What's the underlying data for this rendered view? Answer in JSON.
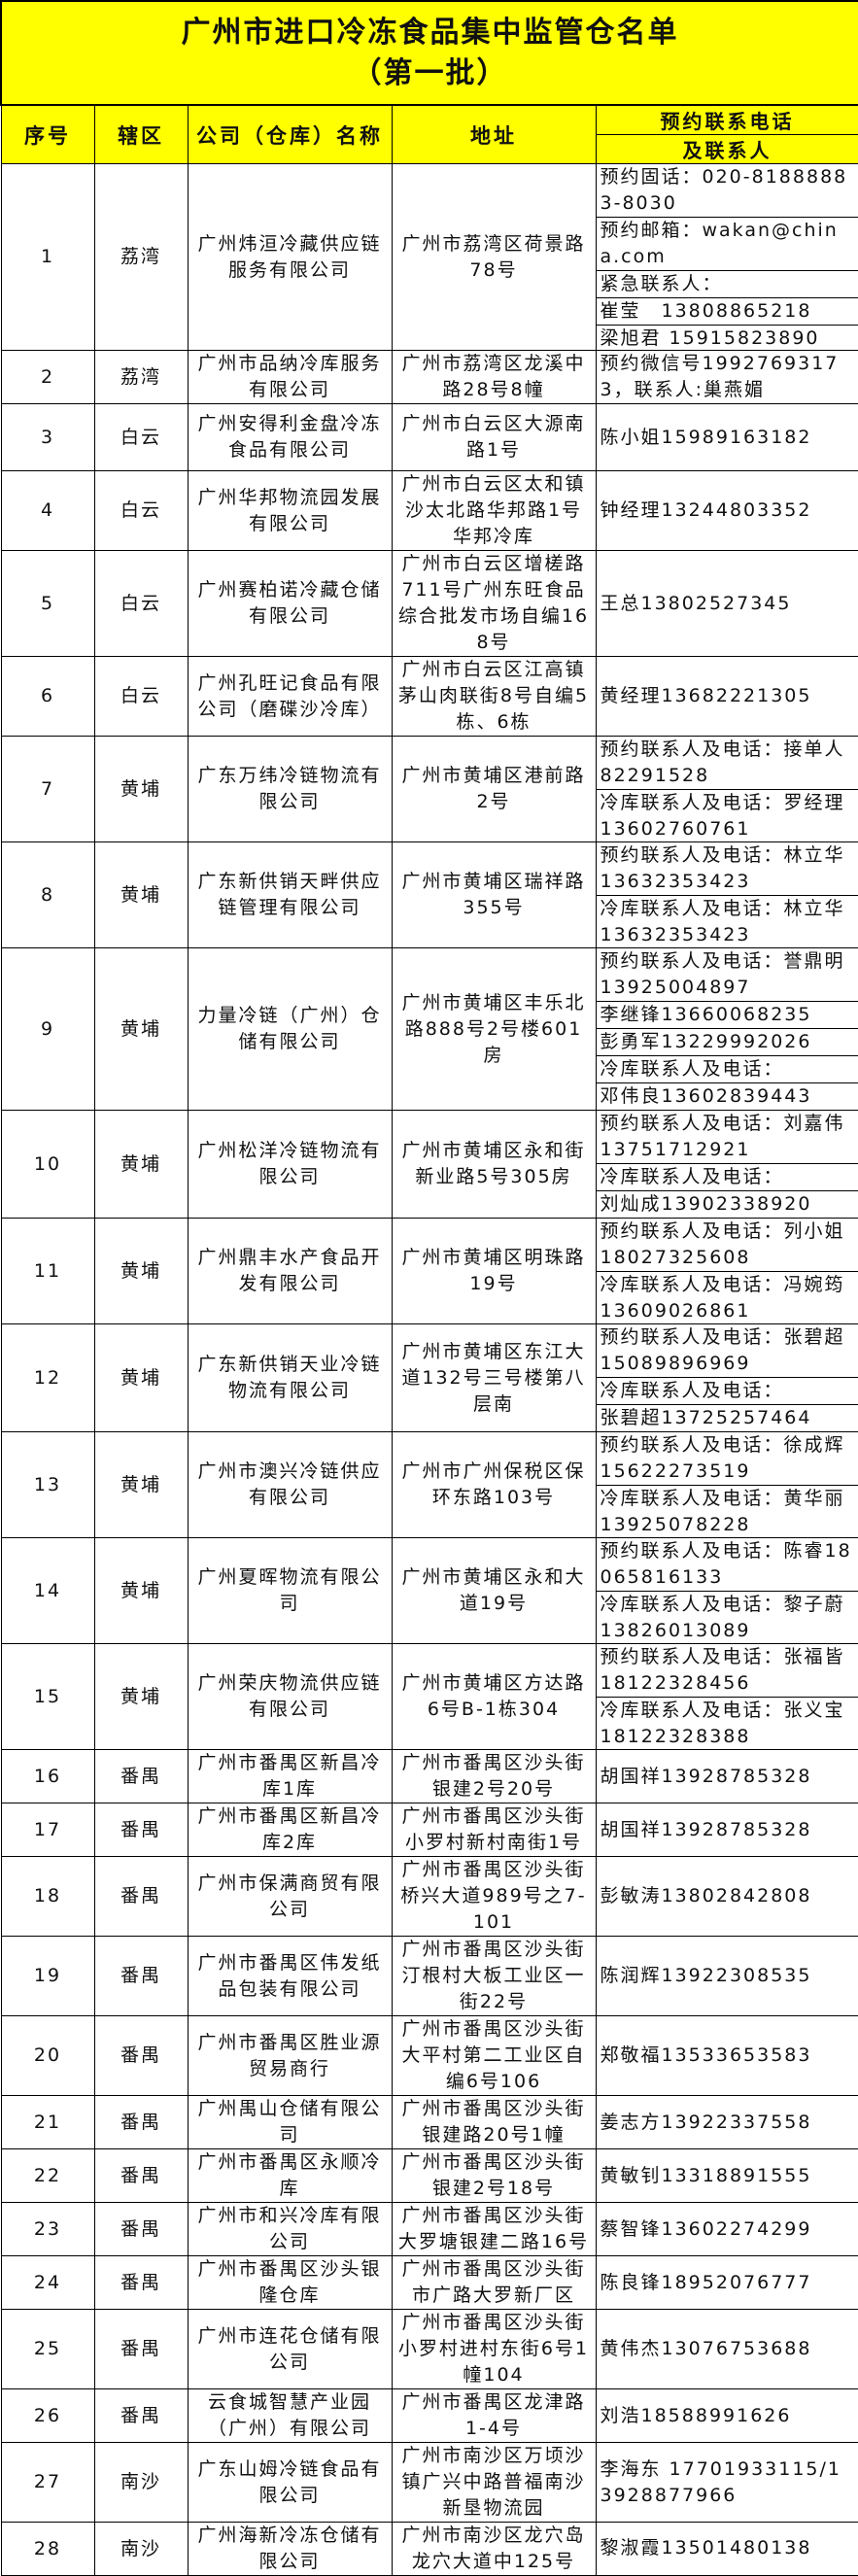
{
  "title": {
    "line1": "广州市进口冷冻食品集中监管仓名单",
    "line2": "（第一批）"
  },
  "headers": {
    "no": "序号",
    "district": "辖区",
    "company": "公司（仓库）名称",
    "address": "地址",
    "contact_line1": "预约联系电话",
    "contact_line2": "及联系人"
  },
  "theme": {
    "header_bg": "#ffff00"
  },
  "rows": [
    {
      "no": "1",
      "district": "荔湾",
      "company": "广州炜洹冷藏供应链服务有限公司",
      "address": "广州市荔湾区荷景路78号",
      "contacts": [
        "预约固话：020-81888883-8030",
        "预约邮箱：wakan@china.com",
        "紧急联系人：",
        "崔莹　13808865218",
        "梁旭君 15915823890"
      ]
    },
    {
      "no": "2",
      "district": "荔湾",
      "company": "广州市品纳冷库服务有限公司",
      "address": "广州市荔湾区龙溪中路28号8幢",
      "contacts": [
        "预约微信号19927693173，联系人:巢燕媚"
      ]
    },
    {
      "no": "3",
      "district": "白云",
      "company": "广州安得利金盘冷冻食品有限公司",
      "address": "广州市白云区大源南路1号",
      "contacts": [
        "陈小姐15989163182"
      ]
    },
    {
      "no": "4",
      "district": "白云",
      "company": "广州华邦物流园发展有限公司",
      "address": "广州市白云区太和镇沙太北路华邦路1号华邦冷库",
      "contacts": [
        "钟经理13244803352"
      ]
    },
    {
      "no": "5",
      "district": "白云",
      "company": "广州赛柏诺冷藏仓储有限公司",
      "address": "广州市白云区增槎路711号广州东旺食品综合批发市场自编168号",
      "contacts": [
        "王总13802527345"
      ]
    },
    {
      "no": "6",
      "district": "白云",
      "company": "广州孔旺记食品有限公司（磨碟沙冷库）",
      "address": "广州市白云区江高镇茅山肉联街8号自编5栋、6栋",
      "contacts": [
        "黄经理13682221305"
      ]
    },
    {
      "no": "7",
      "district": "黄埔",
      "company": "广东万纬冷链物流有限公司",
      "address": "广州市黄埔区港前路2号",
      "contacts": [
        "预约联系人及电话：接单人82291528",
        "冷库联系人及电话：罗经理13602760761"
      ]
    },
    {
      "no": "8",
      "district": "黄埔",
      "company": "广东新供销天畔供应链管理有限公司",
      "address": "广州市黄埔区瑞祥路355号",
      "contacts": [
        "预约联系人及电话：林立华13632353423",
        "冷库联系人及电话：林立华13632353423"
      ]
    },
    {
      "no": "9",
      "district": "黄埔",
      "company": "力量冷链（广州）仓储有限公司",
      "address": "广州市黄埔区丰乐北路888号2号楼601房",
      "contacts": [
        "预约联系人及电话：誉鼎明13925004897",
        "李继锋13660068235",
        "彭勇军13229992026",
        "冷库联系人及电话：",
        "邓伟良13602839443"
      ]
    },
    {
      "no": "10",
      "district": "黄埔",
      "company": "广州松洋冷链物流有限公司",
      "address": "广州市黄埔区永和街新业路5号305房",
      "contacts": [
        "预约联系人及电话：刘嘉伟13751712921",
        "冷库联系人及电话：",
        "刘灿成13902338920"
      ]
    },
    {
      "no": "11",
      "district": "黄埔",
      "company": "广州鼎丰水产食品开发有限公司",
      "address": "广州市黄埔区明珠路19号",
      "contacts": [
        "预约联系人及电话：列小姐18027325608",
        "冷库联系人及电话：冯婉筠13609026861"
      ]
    },
    {
      "no": "12",
      "district": "黄埔",
      "company": "广东新供销天业冷链物流有限公司",
      "address": "广州市黄埔区东江大道132号三号楼第八层南",
      "contacts": [
        "预约联系人及电话：张碧超15089896969",
        "冷库联系人及电话：",
        "张碧超13725257464"
      ]
    },
    {
      "no": "13",
      "district": "黄埔",
      "company": "广州市澳兴冷链供应有限公司",
      "address": "广州市广州保税区保环东路103号",
      "contacts": [
        "预约联系人及电话：徐成辉15622273519",
        "冷库联系人及电话：黄华丽13925078228"
      ]
    },
    {
      "no": "14",
      "district": "黄埔",
      "company": "广州夏晖物流有限公司",
      "address": "广州市黄埔区永和大道19号",
      "contacts": [
        "预约联系人及电话：陈睿18065816133",
        "冷库联系人及电话：黎子蔚13826013089"
      ]
    },
    {
      "no": "15",
      "district": "黄埔",
      "company": "广州荣庆物流供应链有限公司",
      "address": "广州市黄埔区方达路6号B-1栋304",
      "contacts": [
        "预约联系人及电话：张福皆18122328456",
        "冷库联系人及电话：张义宝18122328388"
      ]
    },
    {
      "no": "16",
      "district": "番禺",
      "company": "广州市番禺区新昌冷库1库",
      "address": "广州市番禺区沙头街银建2号20号",
      "contacts": [
        "胡国祥13928785328"
      ]
    },
    {
      "no": "17",
      "district": "番禺",
      "company": "广州市番禺区新昌冷库2库",
      "address": "广州市番禺区沙头街小罗村新村南街1号",
      "contacts": [
        "胡国祥13928785328"
      ]
    },
    {
      "no": "18",
      "district": "番禺",
      "company": "广州市保满商贸有限公司",
      "address": "广州市番禺区沙头街桥兴大道989号之7-101",
      "contacts": [
        "彭敏涛13802842808"
      ]
    },
    {
      "no": "19",
      "district": "番禺",
      "company": "广州市番禺区伟发纸品包装有限公司",
      "address": "广州市番禺区沙头街汀根村大板工业区一街22号",
      "contacts": [
        "陈润辉13922308535"
      ]
    },
    {
      "no": "20",
      "district": "番禺",
      "company": "广州市番禺区胜业源贸易商行",
      "address": "广州市番禺区沙头街大平村第二工业区自编6号106",
      "contacts": [
        "郑敬福13533653583"
      ]
    },
    {
      "no": "21",
      "district": "番禺",
      "company": "广州禺山仓储有限公司",
      "address": "广州市番禺区沙头街银建路20号1幢",
      "contacts": [
        "姜志方13922337558"
      ]
    },
    {
      "no": "22",
      "district": "番禺",
      "company": "广州市番禺区永顺冷库",
      "address": "广州市番禺区沙头街银建2号18号",
      "contacts": [
        "黄敏钊13318891555"
      ]
    },
    {
      "no": "23",
      "district": "番禺",
      "company": "广州市和兴冷库有限公司",
      "address": "广州市番禺区沙头街大罗塘银建二路16号",
      "contacts": [
        "蔡智锋13602274299"
      ]
    },
    {
      "no": "24",
      "district": "番禺",
      "company": "广州市番禺区沙头银隆仓库",
      "address": "广州市番禺区沙头街市广路大罗新厂区",
      "contacts": [
        "陈良锋18952076777"
      ]
    },
    {
      "no": "25",
      "district": "番禺",
      "company": "广州市连花仓储有限公司",
      "address": "广州市番禺区沙头街小罗村进村东街6号1幢104",
      "contacts": [
        "黄伟杰13076753688"
      ]
    },
    {
      "no": "26",
      "district": "番禺",
      "company": "云食城智慧产业园（广州）有限公司",
      "address": "广州市番禺区龙津路1-4号",
      "contacts": [
        "刘浩18588991626"
      ]
    },
    {
      "no": "27",
      "district": "南沙",
      "company": "广东山姆冷链食品有限公司",
      "address": "广州市南沙区万顷沙镇广兴中路普福南沙新垦物流园",
      "contacts": [
        "李海东 17701933115/13928877966"
      ]
    },
    {
      "no": "28",
      "district": "南沙",
      "company": "广州海新冷冻仓储有限公司",
      "address": "广州市南沙区龙穴岛龙穴大道中125号",
      "contacts": [
        "黎淑霞13501480138"
      ]
    }
  ]
}
